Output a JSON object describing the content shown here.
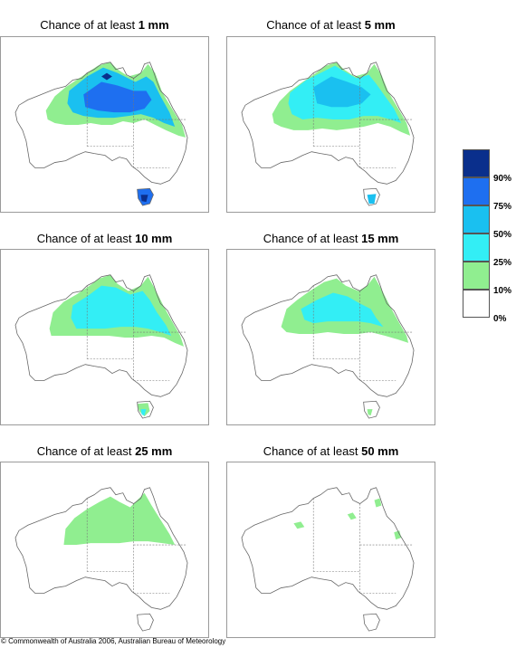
{
  "panels": [
    {
      "title_prefix": "Chance of at least",
      "title_value": "1 mm"
    },
    {
      "title_prefix": "Chance of at least",
      "title_value": "5 mm"
    },
    {
      "title_prefix": "Chance of at least",
      "title_value": "10 mm"
    },
    {
      "title_prefix": "Chance of at least",
      "title_value": "15 mm"
    },
    {
      "title_prefix": "Chance of at least",
      "title_value": "25 mm"
    },
    {
      "title_prefix": "Chance of at least",
      "title_value": "50 mm"
    }
  ],
  "legend": {
    "bands": [
      {
        "range": "90–100%",
        "color": "#0a2f8c"
      },
      {
        "range": "75–90%",
        "color": "#1e6ff0"
      },
      {
        "range": "50–75%",
        "color": "#1ac0f0"
      },
      {
        "range": "25–50%",
        "color": "#33eef5"
      },
      {
        "range": "10–25%",
        "color": "#90ee90"
      },
      {
        "range": "0–10%",
        "color": "#ffffff"
      }
    ],
    "ticks": [
      "90%",
      "75%",
      "50%",
      "25%",
      "10%",
      "0%"
    ]
  },
  "copyright": "© Commonwealth of Australia 2006, Australian Bureau of Meteorology"
}
